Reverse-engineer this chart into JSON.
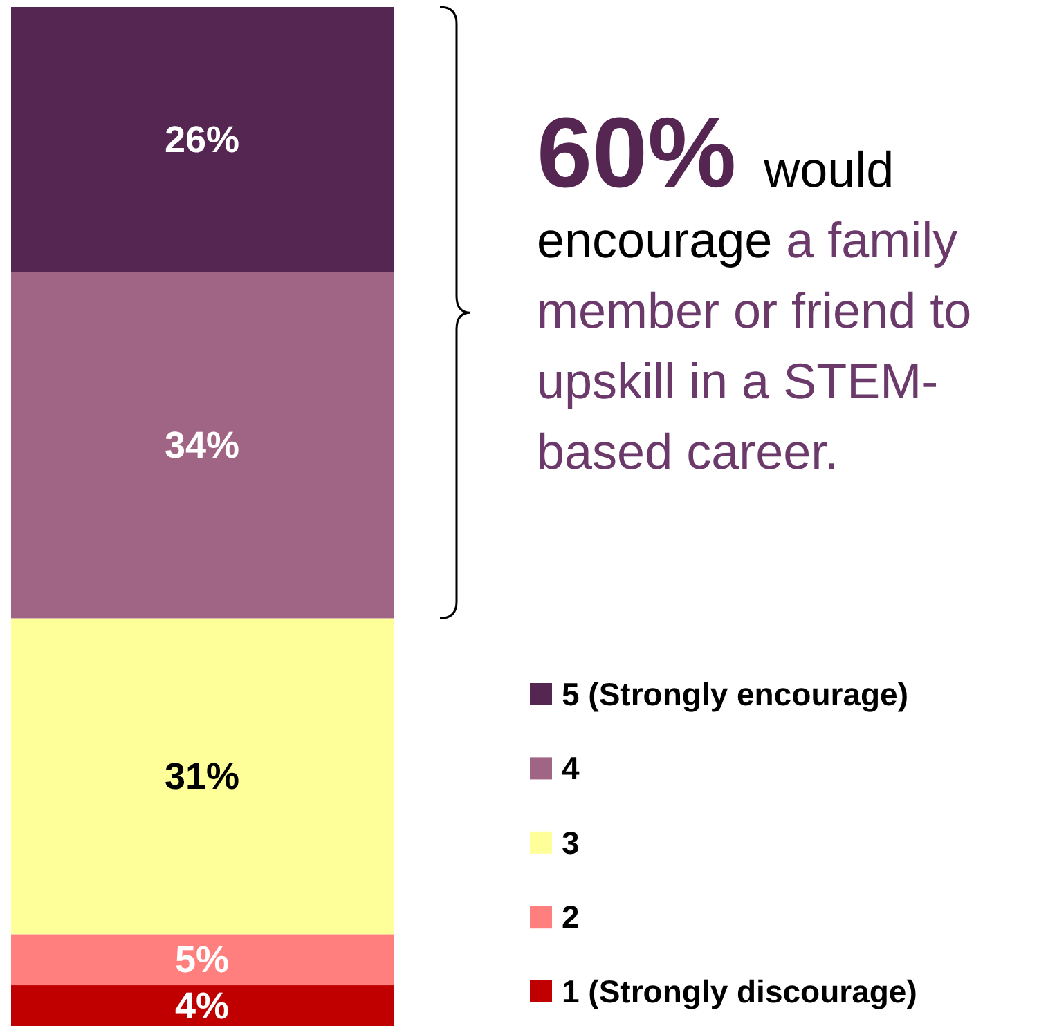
{
  "chart_data": {
    "type": "bar",
    "stacked": true,
    "categories": [
      null
    ],
    "legend": "right",
    "series": [
      {
        "name": "1 (Strongly discourage)",
        "color": "#c00000",
        "values": [
          4
        ],
        "value_labels": [
          "4%"
        ]
      },
      {
        "name": "2",
        "color": "#ff7f7f",
        "values": [
          5
        ],
        "value_labels": [
          "5%"
        ]
      },
      {
        "name": "3",
        "color": "#ffff99",
        "values": [
          31
        ],
        "value_labels": [
          "31%"
        ]
      },
      {
        "name": "4",
        "color": "#a06585",
        "values": [
          34
        ],
        "value_labels": [
          "34%"
        ]
      },
      {
        "name": "5 (Strongly encourage)",
        "color": "#552652",
        "values": [
          26
        ],
        "value_labels": [
          "26%"
        ]
      }
    ],
    "annotations": [
      "60%",
      "would encourage",
      "a family member or friend to upskill in a STEM-based career."
    ]
  }
}
